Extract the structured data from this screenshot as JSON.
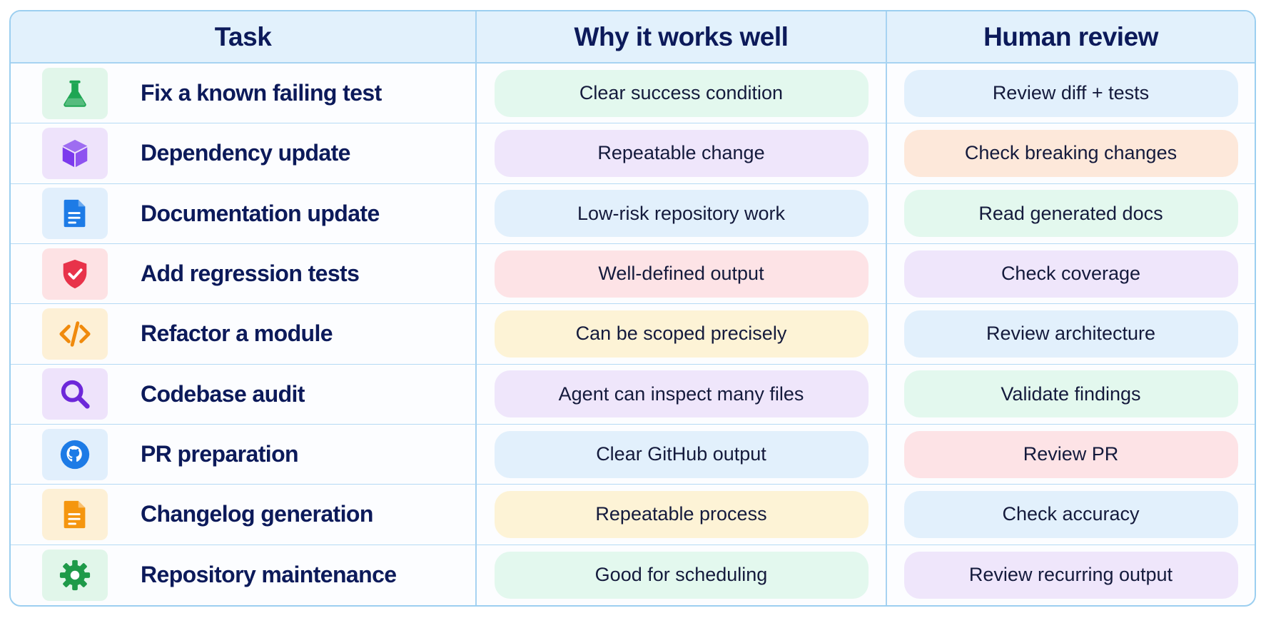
{
  "headers": {
    "task": "Task",
    "why": "Why it works well",
    "review": "Human review"
  },
  "rows": [
    {
      "task": "Fix a known failing test",
      "icon": "flask-icon",
      "icon_bg": "#e1f6ea",
      "icon_color": "#1ea653",
      "why": "Clear success condition",
      "why_color": "green",
      "review": "Review diff + tests",
      "review_color": "blue"
    },
    {
      "task": "Dependency update",
      "icon": "cube-icon",
      "icon_bg": "#eee3fb",
      "icon_color": "#7c3aed",
      "why": "Repeatable change",
      "why_color": "purple",
      "review": "Check breaking changes",
      "review_color": "orange"
    },
    {
      "task": "Documentation update",
      "icon": "document-icon",
      "icon_bg": "#e1effc",
      "icon_color": "#1d7be6",
      "why": "Low-risk repository work",
      "why_color": "blue",
      "review": "Read generated docs",
      "review_color": "green"
    },
    {
      "task": "Add regression tests",
      "icon": "shield-check-icon",
      "icon_bg": "#fde2e4",
      "icon_color": "#e8334a",
      "why": "Well-defined output",
      "why_color": "pink",
      "review": "Check coverage",
      "review_color": "purple"
    },
    {
      "task": "Refactor a module",
      "icon": "code-icon",
      "icon_bg": "#fdf0d6",
      "icon_color": "#f08a0c",
      "why": "Can be scoped precisely",
      "why_color": "yellow",
      "review": "Review architecture",
      "review_color": "blue"
    },
    {
      "task": "Codebase audit",
      "icon": "magnifier-icon",
      "icon_bg": "#eee3fb",
      "icon_color": "#6d28d9",
      "why": "Agent can inspect many files",
      "why_color": "purple",
      "review": "Validate findings",
      "review_color": "green"
    },
    {
      "task": "PR preparation",
      "icon": "github-icon",
      "icon_bg": "#e1effc",
      "icon_color": "#1d7be6",
      "why": "Clear GitHub output",
      "why_color": "blue",
      "review": "Review PR",
      "review_color": "pink"
    },
    {
      "task": "Changelog generation",
      "icon": "changelog-icon",
      "icon_bg": "#fdf0d6",
      "icon_color": "#f5960f",
      "why": "Repeatable process",
      "why_color": "yellow",
      "review": "Check accuracy",
      "review_color": "blue"
    },
    {
      "task": "Repository maintenance",
      "icon": "gear-icon",
      "icon_bg": "#e1f6ea",
      "icon_color": "#1e9a49",
      "why": "Good for scheduling",
      "why_color": "green",
      "review": "Review recurring output",
      "review_color": "purple"
    }
  ]
}
